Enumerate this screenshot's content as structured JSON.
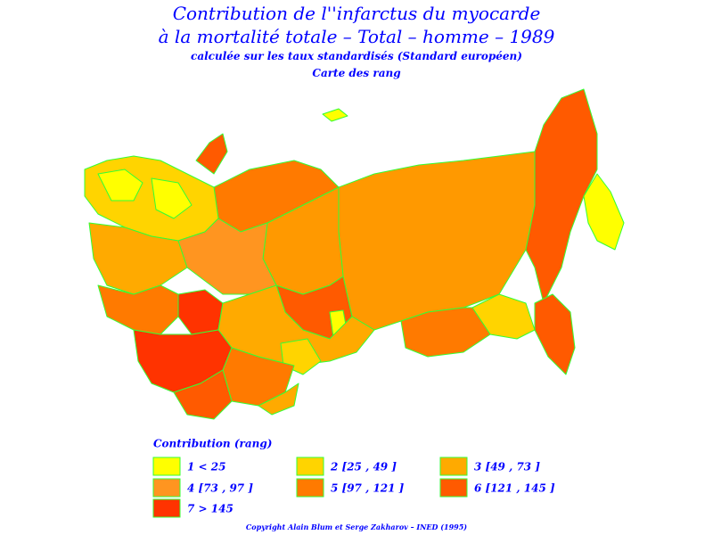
{
  "header": {
    "title_line1": "Contribution de l''infarctus du myocarde",
    "title_line2": "à la mortalité totale – Total – homme – 1989",
    "subtitle": "calculée sur les taux standardisés (Standard européen)",
    "map_title": "Carte des rang"
  },
  "legend": {
    "title": "Contribution (rang)",
    "items": [
      {
        "label": "1  <  25",
        "color": "#ffff00"
      },
      {
        "label": "2 [25 , 49 ]",
        "color": "#ffd400"
      },
      {
        "label": "3 [49 , 73 ]",
        "color": "#ffaa00"
      },
      {
        "label": "4 [73 , 97 ]",
        "color": "#ff9520"
      },
      {
        "label": "5 [97 , 121 ]",
        "color": "#ff7a00"
      },
      {
        "label": "6 [121 , 145 ]",
        "color": "#ff5a00"
      },
      {
        "label": "7  >  145",
        "color": "#ff3300"
      }
    ]
  },
  "footer": {
    "copyright": "Copyright Alain Blum et Serge Zakharov – INED (1995)"
  }
}
